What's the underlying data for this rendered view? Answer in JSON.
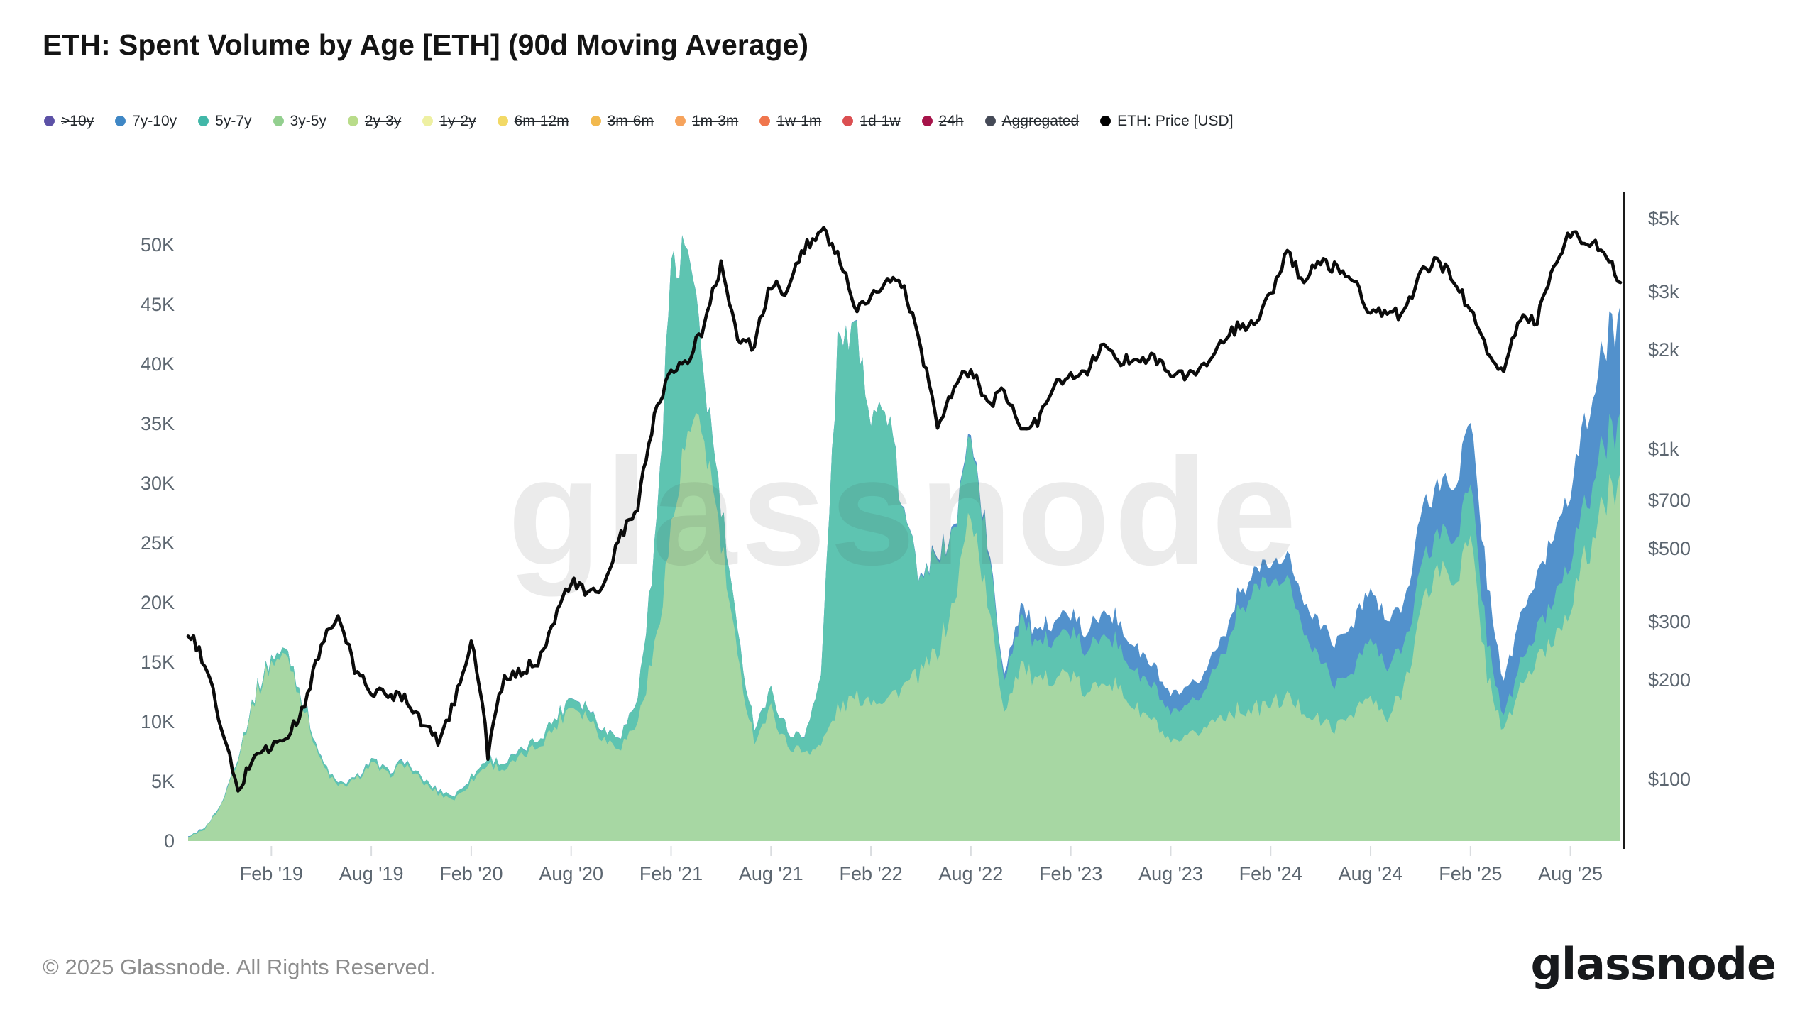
{
  "header": {
    "title": "ETH: Spent Volume by Age [ETH] (90d Moving Average)"
  },
  "watermark": "glassnode",
  "footer": {
    "copyright": "© 2025 Glassnode. All Rights Reserved.",
    "brand": "glassnode"
  },
  "legend": {
    "items": [
      {
        "label": ">10y",
        "color": "#5c51a6",
        "enabled": false
      },
      {
        "label": "7y-10y",
        "color": "#3f87c5",
        "enabled": true
      },
      {
        "label": "5y-7y",
        "color": "#41b7a8",
        "enabled": true
      },
      {
        "label": "3y-5y",
        "color": "#93cf8f",
        "enabled": true
      },
      {
        "label": "2y-3y",
        "color": "#b9dc8a",
        "enabled": false
      },
      {
        "label": "1y-2y",
        "color": "#eef0a2",
        "enabled": false
      },
      {
        "label": "6m-12m",
        "color": "#f2d966",
        "enabled": false
      },
      {
        "label": "3m-6m",
        "color": "#f2b94e",
        "enabled": false
      },
      {
        "label": "1m-3m",
        "color": "#f6a35c",
        "enabled": false
      },
      {
        "label": "1w-1m",
        "color": "#f0764d",
        "enabled": false
      },
      {
        "label": "1d-1w",
        "color": "#db4f51",
        "enabled": false
      },
      {
        "label": "24h",
        "color": "#a61349",
        "enabled": false
      },
      {
        "label": "Aggregated",
        "color": "#454a57",
        "enabled": false
      },
      {
        "label": "ETH: Price [USD]",
        "color": "#000000",
        "enabled": true
      }
    ]
  },
  "chart_data": {
    "type": "area",
    "stacked": true,
    "title": "ETH: Spent Volume by Age [ETH] (90d Moving Average)",
    "x_range": {
      "start": "2018-09",
      "end": "2025-11",
      "points_per_series": 87,
      "unit": "month"
    },
    "x_ticks": [
      {
        "label": "Feb '19",
        "month_index": 5
      },
      {
        "label": "Aug '19",
        "month_index": 11
      },
      {
        "label": "Feb '20",
        "month_index": 17
      },
      {
        "label": "Aug '20",
        "month_index": 23
      },
      {
        "label": "Feb '21",
        "month_index": 29
      },
      {
        "label": "Aug '21",
        "month_index": 35
      },
      {
        "label": "Feb '22",
        "month_index": 41
      },
      {
        "label": "Aug '22",
        "month_index": 47
      },
      {
        "label": "Feb '23",
        "month_index": 53
      },
      {
        "label": "Aug '23",
        "month_index": 59
      },
      {
        "label": "Feb '24",
        "month_index": 65
      },
      {
        "label": "Aug '24",
        "month_index": 71
      },
      {
        "label": "Feb '25",
        "month_index": 77
      },
      {
        "label": "Aug '25",
        "month_index": 83
      }
    ],
    "left_axis": {
      "title": "Spent Volume (ETH, 90d MA)",
      "ticks": [
        {
          "label": "0",
          "value": 0
        },
        {
          "label": "5K",
          "value": 5
        },
        {
          "label": "10K",
          "value": 10
        },
        {
          "label": "15K",
          "value": 15
        },
        {
          "label": "20K",
          "value": 20
        },
        {
          "label": "25K",
          "value": 25
        },
        {
          "label": "30K",
          "value": 30
        },
        {
          "label": "35K",
          "value": 35
        },
        {
          "label": "40K",
          "value": 40
        },
        {
          "label": "45K",
          "value": 45
        },
        {
          "label": "50K",
          "value": 50
        }
      ],
      "min": 0,
      "max": 53,
      "grid": false
    },
    "right_axis": {
      "title": "ETH Price [USD]",
      "scale": "log",
      "ticks": [
        {
          "label": "$5k",
          "value": 5000
        },
        {
          "label": "$3k",
          "value": 3000
        },
        {
          "label": "$2k",
          "value": 2000
        },
        {
          "label": "$1k",
          "value": 1000
        },
        {
          "label": "$700",
          "value": 700
        },
        {
          "label": "$500",
          "value": 500
        },
        {
          "label": "$300",
          "value": 300
        },
        {
          "label": "$200",
          "value": 200
        },
        {
          "label": "$100",
          "value": 100
        }
      ]
    },
    "series": [
      {
        "name": "3y-5y",
        "color": "#a7d7a3",
        "unit": "K ETH",
        "values": [
          0.3,
          1,
          3,
          7,
          12,
          15,
          15.5,
          11,
          6.5,
          4.5,
          5,
          6.5,
          5.5,
          6.5,
          5,
          4,
          3.5,
          5,
          6.5,
          6,
          7,
          8,
          9.5,
          11.5,
          10.5,
          8.5,
          8,
          10,
          16,
          26,
          34,
          34,
          25,
          15,
          8.5,
          11,
          8,
          7.5,
          8,
          11,
          12,
          12,
          12,
          13,
          14,
          16,
          20,
          28,
          20,
          11,
          15,
          13,
          14,
          14,
          12,
          14,
          12.5,
          11,
          10,
          8,
          8.5,
          9.5,
          10.5,
          11,
          11,
          11.5,
          12,
          11,
          10,
          9.5,
          11,
          12,
          10,
          13,
          19,
          23,
          22,
          25,
          14,
          9,
          13,
          15,
          17,
          20,
          24,
          28,
          31
        ]
      },
      {
        "name": "5y-7y",
        "color": "#5ec4b1",
        "unit": "K ETH",
        "values": [
          0,
          0.1,
          0.1,
          0.2,
          0.3,
          0.5,
          0.5,
          0.4,
          0.3,
          0.2,
          0.2,
          0.3,
          0.3,
          0.3,
          0.3,
          0.3,
          0.3,
          0.4,
          0.5,
          0.5,
          0.5,
          0.6,
          0.7,
          0.8,
          0.8,
          0.8,
          1,
          2,
          8,
          22,
          16,
          5,
          3,
          2,
          1.2,
          1.5,
          1.2,
          1.2,
          6,
          31,
          30,
          25,
          24,
          14,
          8,
          8,
          6,
          6.5,
          4.5,
          2.5,
          4,
          3,
          3.5,
          3.5,
          3.5,
          4,
          3.5,
          3,
          2.8,
          2.5,
          2.5,
          3,
          5,
          8,
          10,
          10.5,
          9.5,
          7,
          5,
          3.5,
          3.5,
          5,
          4.5,
          3.5,
          3.5,
          3,
          3.5,
          4.5,
          3,
          1.2,
          2,
          2.5,
          3.5,
          4,
          4.5,
          5,
          5
        ]
      },
      {
        "name": "7y-10y",
        "color": "#5291cc",
        "unit": "K ETH",
        "values": [
          0,
          0,
          0,
          0,
          0,
          0,
          0,
          0,
          0,
          0,
          0,
          0,
          0,
          0,
          0,
          0,
          0,
          0,
          0,
          0,
          0,
          0,
          0,
          0,
          0,
          0,
          0,
          0,
          0,
          0,
          0,
          0,
          0,
          0,
          0,
          0,
          0,
          0,
          0,
          0,
          0,
          0,
          0,
          0.1,
          0.1,
          0.2,
          0.2,
          0.3,
          0.3,
          0.5,
          1,
          1,
          1.5,
          1.5,
          1.5,
          2,
          2,
          2,
          1.7,
          1.5,
          1.5,
          1.5,
          1.5,
          1.5,
          1.5,
          1.5,
          2,
          2.5,
          3,
          3.5,
          4,
          4,
          4,
          3.5,
          4.5,
          4,
          4.5,
          5.5,
          5,
          2.8,
          4,
          4.5,
          5.5,
          6,
          7,
          8,
          9
        ]
      }
    ],
    "price_series": {
      "name": "ETH: Price [USD]",
      "color": "#0b0b0b",
      "scale": "log-right-axis",
      "unit": "USD",
      "values": [
        280,
        225,
        140,
        90,
        120,
        125,
        135,
        165,
        255,
        310,
        215,
        185,
        180,
        180,
        150,
        130,
        170,
        260,
        120,
        200,
        210,
        230,
        300,
        400,
        360,
        385,
        550,
        650,
        1250,
        1750,
        1850,
        2350,
        3600,
        2150,
        2050,
        3150,
        3000,
        4050,
        4650,
        3950,
        2600,
        2850,
        3300,
        3050,
        2000,
        1150,
        1550,
        1750,
        1350,
        1500,
        1150,
        1200,
        1600,
        1650,
        1750,
        2050,
        1850,
        1900,
        1900,
        1700,
        1650,
        1800,
        2050,
        2350,
        2350,
        2950,
        3900,
        3200,
        3750,
        3500,
        3300,
        2550,
        2600,
        2550,
        3400,
        3700,
        3300,
        2600,
        2000,
        1650,
        2550,
        2450,
        3600,
        4500,
        4300,
        4000,
        3200
      ]
    }
  }
}
